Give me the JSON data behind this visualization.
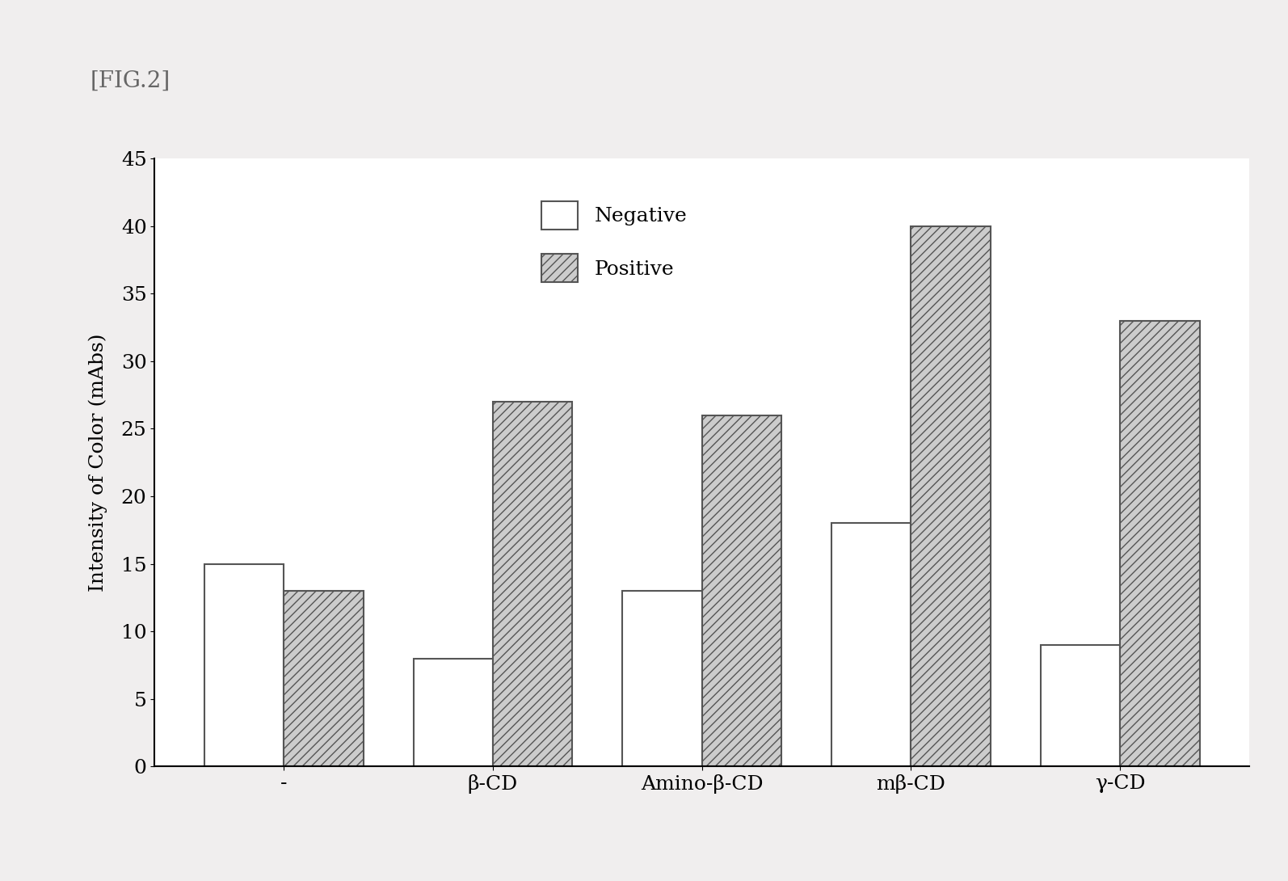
{
  "categories": [
    "-",
    "β-CD",
    "Amino-β-CD",
    "mβ-CD",
    "γ-CD"
  ],
  "negative_values": [
    15,
    8,
    13,
    18,
    9
  ],
  "positive_values": [
    13,
    27,
    26,
    40,
    33
  ],
  "ylabel": "Intensity of Color (mAbs)",
  "ylim": [
    0,
    45
  ],
  "yticks": [
    0,
    5,
    10,
    15,
    20,
    25,
    30,
    35,
    40,
    45
  ],
  "bar_width": 0.38,
  "negative_color": "#ffffff",
  "positive_color": "#cccccc",
  "negative_hatch": "",
  "positive_hatch": "///",
  "edge_color": "#555555",
  "background_color": "#f0eeee",
  "plot_bg_color": "#ffffff",
  "title_text": "[FIG.2]",
  "legend_labels": [
    "Negative",
    "Positive"
  ],
  "figure_width": 15.94,
  "figure_height": 10.9,
  "dpi": 100,
  "font_size_ticks": 18,
  "font_size_ylabel": 18,
  "font_size_xlabel": 18,
  "font_size_legend": 18,
  "font_size_title": 20
}
